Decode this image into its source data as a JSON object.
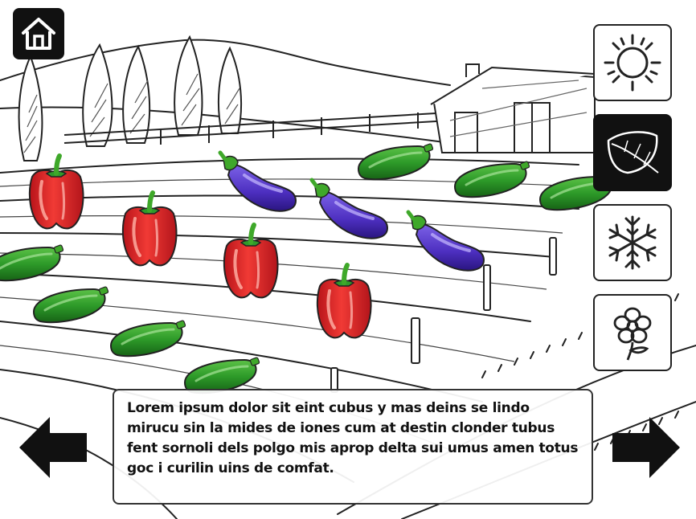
{
  "nav": {
    "home_icon": "house-icon",
    "prev_icon": "arrow-left-icon",
    "next_icon": "arrow-right-icon"
  },
  "seasons": [
    {
      "key": "summer",
      "icon": "sun-icon",
      "selected": false
    },
    {
      "key": "autumn",
      "icon": "leaf-icon",
      "selected": true
    },
    {
      "key": "winter",
      "icon": "snowflake-icon",
      "selected": false
    },
    {
      "key": "spring",
      "icon": "flower-icon",
      "selected": false
    }
  ],
  "caption": {
    "text": "Lorem ipsum dolor sit eint cubus y mas deins se lindo mirucu sin la mides de iones cum at destin clonder tubus fent sornoli dels polgo mis aprop delta sui umus amen totus goc i curilin uins de comfat."
  },
  "scene": {
    "description_icons": [
      "bell-pepper-icon",
      "eggplant-icon",
      "zucchini-icon"
    ],
    "colors": {
      "pepper": "#e8262a",
      "eggplant": "#5b3fc6",
      "zucchini": "#2f9a2a",
      "stem": "#3fa82a",
      "ink": "#222222"
    }
  }
}
